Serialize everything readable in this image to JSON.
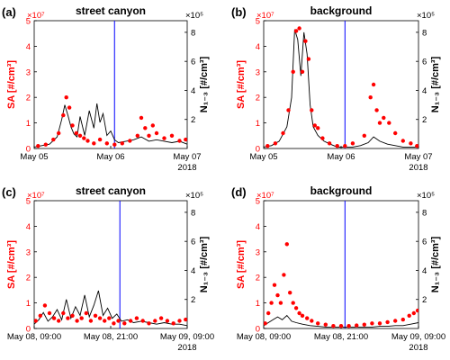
{
  "chart_data": [
    {
      "panel": "(a)",
      "title": "street canyon",
      "type": "line",
      "y_left": {
        "label": "SA [#/cm³]",
        "ticks": [
          "0",
          "1",
          "2",
          "3",
          "4",
          "5"
        ],
        "exponent": "×10⁷",
        "lim": [
          0,
          5
        ]
      },
      "y_right": {
        "label": "N₁₋₃ [#/cm³]",
        "ticks": [
          "2",
          "4",
          "6",
          "8"
        ],
        "exponent": "×10⁵",
        "lim": [
          0,
          8.8
        ]
      },
      "x": {
        "ticks": [
          "May 05",
          "May 06",
          "May 07"
        ],
        "year": "2018",
        "lim": [
          0,
          2
        ]
      },
      "vline_x": 1.05,
      "series": [
        {
          "name": "SA",
          "color": "#ff0000",
          "style": "scatter",
          "x": [
            0.05,
            0.15,
            0.25,
            0.32,
            0.38,
            0.42,
            0.46,
            0.5,
            0.55,
            0.6,
            0.65,
            0.7,
            0.78,
            0.86,
            0.95,
            1.05,
            1.15,
            1.25,
            1.35,
            1.4,
            1.45,
            1.5,
            1.55,
            1.6,
            1.7,
            1.8,
            1.9,
            1.98
          ],
          "y": [
            0.1,
            0.15,
            0.35,
            0.6,
            1.3,
            2.0,
            1.6,
            0.9,
            0.6,
            0.5,
            0.4,
            0.3,
            0.2,
            0.35,
            0.2,
            0.15,
            0.2,
            0.3,
            0.5,
            1.2,
            0.8,
            0.5,
            0.9,
            0.6,
            0.4,
            0.5,
            0.3,
            0.35
          ]
        },
        {
          "name": "N1-3",
          "color": "#000000",
          "style": "line",
          "x": [
            0.0,
            0.1,
            0.2,
            0.3,
            0.36,
            0.4,
            0.44,
            0.48,
            0.52,
            0.56,
            0.6,
            0.66,
            0.72,
            0.78,
            0.82,
            0.86,
            0.9,
            0.95,
            1.0,
            1.05,
            1.1,
            1.2,
            1.3,
            1.4,
            1.5,
            1.6,
            1.7,
            1.8,
            1.9,
            2.0
          ],
          "y": [
            0.1,
            0.2,
            0.3,
            0.8,
            2.0,
            3.0,
            2.3,
            1.5,
            1.0,
            0.8,
            2.2,
            0.9,
            2.6,
            1.4,
            3.1,
            1.8,
            2.4,
            0.9,
            1.2,
            0.6,
            0.4,
            0.5,
            0.6,
            0.8,
            0.5,
            0.6,
            0.5,
            0.4,
            0.5,
            0.3
          ]
        }
      ]
    },
    {
      "panel": "(b)",
      "title": "background",
      "type": "line",
      "y_left": {
        "label": "SA [#/cm³]",
        "ticks": [
          "0",
          "1",
          "2",
          "3",
          "4",
          "5"
        ],
        "exponent": "×10⁷",
        "lim": [
          0,
          5
        ]
      },
      "y_right": {
        "label": "N₁₋₃ [#/cm³]",
        "ticks": [
          "2",
          "4",
          "6",
          "8"
        ],
        "exponent": "×10⁵",
        "lim": [
          0,
          8.8
        ]
      },
      "x": {
        "ticks": [
          "May 05",
          "May 06",
          "May 07"
        ],
        "year": "2018",
        "lim": [
          0,
          2
        ]
      },
      "vline_x": 1.05,
      "series": [
        {
          "name": "SA",
          "color": "#ff0000",
          "style": "scatter",
          "x": [
            0.05,
            0.15,
            0.25,
            0.32,
            0.38,
            0.42,
            0.46,
            0.5,
            0.54,
            0.58,
            0.62,
            0.66,
            0.7,
            0.76,
            0.85,
            0.95,
            1.05,
            1.15,
            1.3,
            1.38,
            1.42,
            1.46,
            1.5,
            1.55,
            1.62,
            1.7,
            1.8,
            1.9,
            1.98
          ],
          "y": [
            0.1,
            0.2,
            0.6,
            1.5,
            3.0,
            4.6,
            4.7,
            3.0,
            4.2,
            3.5,
            1.5,
            0.9,
            0.8,
            0.4,
            0.2,
            0.1,
            0.1,
            0.2,
            0.5,
            2.0,
            2.5,
            1.5,
            1.0,
            1.2,
            1.0,
            0.6,
            0.3,
            0.2,
            0.1
          ]
        },
        {
          "name": "N1-3",
          "color": "#000000",
          "style": "line",
          "x": [
            0.0,
            0.1,
            0.2,
            0.3,
            0.36,
            0.4,
            0.44,
            0.48,
            0.52,
            0.56,
            0.6,
            0.64,
            0.7,
            0.78,
            0.86,
            0.95,
            1.05,
            1.15,
            1.25,
            1.35,
            1.42,
            1.5,
            1.6,
            1.7,
            1.8,
            1.9,
            2.0
          ],
          "y": [
            0.1,
            0.2,
            0.5,
            1.5,
            3.5,
            8.2,
            7.5,
            5.0,
            8.0,
            6.5,
            3.0,
            1.5,
            0.9,
            0.5,
            0.3,
            0.1,
            0.1,
            0.1,
            0.2,
            0.4,
            0.8,
            0.5,
            0.3,
            0.2,
            0.1,
            0.1,
            0.1
          ]
        }
      ]
    },
    {
      "panel": "(c)",
      "title": "street canyon",
      "type": "line",
      "y_left": {
        "label": "SA [#/cm³]",
        "ticks": [
          "0",
          "1",
          "2",
          "3",
          "4",
          "5"
        ],
        "exponent": "×10⁷",
        "lim": [
          0,
          5
        ]
      },
      "y_right": {
        "label": "N₁₋₃ [#/cm³]",
        "ticks": [
          "2",
          "4",
          "6",
          "8"
        ],
        "exponent": "×10⁵",
        "lim": [
          0,
          8.8
        ]
      },
      "x": {
        "ticks": [
          "May 08, 09:00",
          "May 08, 21:00",
          "May 09, 09:00"
        ],
        "year": "2018",
        "lim": [
          0,
          2
        ]
      },
      "vline_x": 1.12,
      "series": [
        {
          "name": "SA",
          "color": "#ff0000",
          "style": "scatter",
          "x": [
            0.02,
            0.08,
            0.14,
            0.2,
            0.26,
            0.32,
            0.38,
            0.44,
            0.5,
            0.56,
            0.62,
            0.68,
            0.74,
            0.8,
            0.86,
            0.92,
            0.98,
            1.04,
            1.1,
            1.18,
            1.26,
            1.34,
            1.42,
            1.5,
            1.58,
            1.66,
            1.74,
            1.82,
            1.9,
            1.98
          ],
          "y": [
            0.3,
            0.5,
            0.9,
            0.6,
            0.4,
            0.3,
            0.6,
            0.4,
            0.5,
            0.3,
            0.4,
            0.6,
            0.3,
            0.5,
            0.4,
            0.3,
            0.4,
            0.2,
            0.3,
            0.2,
            0.3,
            0.4,
            0.3,
            0.2,
            0.3,
            0.4,
            0.3,
            0.2,
            0.3,
            0.35
          ]
        },
        {
          "name": "N1-3",
          "color": "#000000",
          "style": "line",
          "x": [
            0.0,
            0.06,
            0.12,
            0.18,
            0.24,
            0.3,
            0.36,
            0.42,
            0.48,
            0.54,
            0.6,
            0.66,
            0.72,
            0.78,
            0.84,
            0.9,
            0.96,
            1.02,
            1.08,
            1.14,
            1.22,
            1.3,
            1.4,
            1.5,
            1.6,
            1.7,
            1.8,
            1.9,
            2.0
          ],
          "y": [
            0.3,
            0.6,
            1.1,
            0.5,
            0.8,
            1.3,
            0.6,
            2.0,
            0.7,
            1.5,
            0.9,
            2.3,
            0.8,
            1.6,
            2.6,
            0.9,
            1.4,
            0.7,
            1.0,
            0.5,
            0.6,
            0.4,
            0.5,
            0.4,
            0.3,
            0.4,
            0.3,
            0.3,
            0.2
          ]
        }
      ]
    },
    {
      "panel": "(d)",
      "title": "background",
      "type": "line",
      "y_left": {
        "label": "SA [#/cm³]",
        "ticks": [
          "0",
          "1",
          "2",
          "3",
          "4",
          "5"
        ],
        "exponent": "×10⁷",
        "lim": [
          0,
          5
        ]
      },
      "y_right": {
        "label": "N₁₋₃ [#/cm³]",
        "ticks": [
          "2",
          "4",
          "6",
          "8"
        ],
        "exponent": "×10⁵",
        "lim": [
          0,
          8.8
        ]
      },
      "x": {
        "ticks": [
          "May 08, 09:00",
          "May 08, 21:00",
          "May 09, 09:00"
        ],
        "year": "2018",
        "lim": [
          0,
          2
        ]
      },
      "vline_x": 1.05,
      "series": [
        {
          "name": "SA",
          "color": "#ff0000",
          "style": "scatter",
          "x": [
            0.02,
            0.06,
            0.1,
            0.14,
            0.18,
            0.22,
            0.26,
            0.3,
            0.34,
            0.38,
            0.42,
            0.46,
            0.5,
            0.56,
            0.62,
            0.7,
            0.8,
            0.9,
            1.0,
            1.1,
            1.2,
            1.3,
            1.4,
            1.5,
            1.6,
            1.7,
            1.8,
            1.88,
            1.94,
            1.99
          ],
          "y": [
            0.2,
            0.6,
            1.0,
            1.7,
            1.3,
            1.0,
            2.1,
            3.3,
            1.4,
            1.0,
            0.8,
            0.6,
            0.5,
            0.4,
            0.3,
            0.2,
            0.15,
            0.1,
            0.1,
            0.1,
            0.12,
            0.15,
            0.2,
            0.2,
            0.25,
            0.3,
            0.35,
            0.5,
            0.6,
            0.7
          ]
        },
        {
          "name": "N1-3",
          "color": "#000000",
          "style": "line",
          "x": [
            0.0,
            0.06,
            0.12,
            0.18,
            0.24,
            0.3,
            0.36,
            0.42,
            0.5,
            0.6,
            0.7,
            0.8,
            0.9,
            1.0,
            1.1,
            1.2,
            1.3,
            1.4,
            1.5,
            1.6,
            1.7,
            1.8,
            1.9,
            2.0
          ],
          "y": [
            0.2,
            0.4,
            0.6,
            0.8,
            0.6,
            0.9,
            0.5,
            0.4,
            0.3,
            0.2,
            0.15,
            0.1,
            0.1,
            0.1,
            0.1,
            0.1,
            0.1,
            0.1,
            0.15,
            0.15,
            0.2,
            0.2,
            0.3,
            0.4
          ]
        }
      ]
    }
  ],
  "colors": {
    "sa": "#ff0000",
    "n13": "#000000",
    "vline": "#0000ff"
  }
}
